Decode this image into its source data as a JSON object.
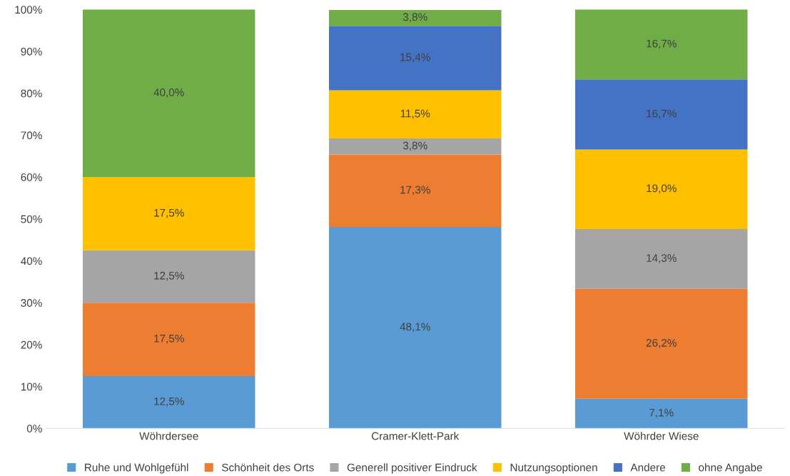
{
  "chart_data": {
    "type": "bar",
    "stacked": true,
    "categories": [
      "Wöhrdersee",
      "Cramer-Klett-Park",
      "Wöhrder Wiese"
    ],
    "series": [
      {
        "name": "Ruhe und Wohlgefühl",
        "color": "#5b9bd5",
        "values": [
          12.5,
          48.1,
          7.1
        ],
        "value_labels": [
          "12,5%",
          "48,1%",
          "7,1%"
        ]
      },
      {
        "name": "Schönheit des Orts",
        "color": "#ed7d31",
        "values": [
          17.5,
          17.3,
          26.2
        ],
        "value_labels": [
          "17,5%",
          "17,3%",
          "26,2%"
        ]
      },
      {
        "name": "Generell positiver Eindruck",
        "color": "#a5a5a5",
        "values": [
          12.5,
          3.8,
          14.3
        ],
        "value_labels": [
          "12,5%",
          "3,8%",
          "14,3%"
        ]
      },
      {
        "name": "Nutzungsoptionen",
        "color": "#ffc000",
        "values": [
          17.5,
          11.5,
          19.0
        ],
        "value_labels": [
          "17,5%",
          "11,5%",
          "19,0%"
        ]
      },
      {
        "name": "Andere",
        "color": "#4472c4",
        "values": [
          0,
          15.4,
          16.7
        ],
        "value_labels": [
          null,
          "15,4%",
          "16,7%"
        ]
      },
      {
        "name": "ohne Angabe",
        "color": "#70ad47",
        "values": [
          40.0,
          3.8,
          16.7
        ],
        "value_labels": [
          "40,0%",
          "3,8%",
          "16,7%"
        ]
      }
    ],
    "ylim": [
      0,
      100
    ],
    "yticks": [
      {
        "value": 0,
        "label": "0%"
      },
      {
        "value": 10,
        "label": "10%"
      },
      {
        "value": 20,
        "label": "20%"
      },
      {
        "value": 30,
        "label": "30%"
      },
      {
        "value": 40,
        "label": "40%"
      },
      {
        "value": 50,
        "label": "50%"
      },
      {
        "value": 60,
        "label": "60%"
      },
      {
        "value": 70,
        "label": "70%"
      },
      {
        "value": 80,
        "label": "80%"
      },
      {
        "value": 90,
        "label": "90%"
      },
      {
        "value": 100,
        "label": "100%"
      }
    ],
    "grid": false,
    "legend": "bottom"
  }
}
